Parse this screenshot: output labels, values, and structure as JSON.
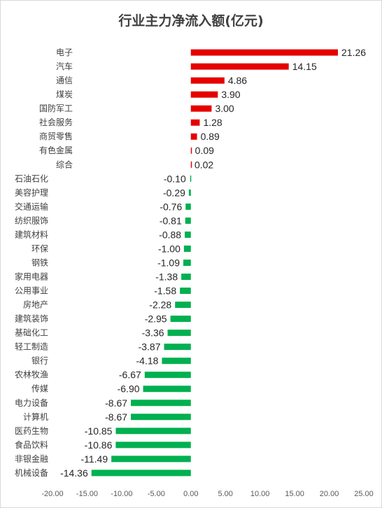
{
  "chart_data": {
    "type": "bar",
    "orientation": "horizontal",
    "title": "行业主力净流入额(亿元)",
    "categories": [
      "电子",
      "汽车",
      "通信",
      "煤炭",
      "国防军工",
      "社会服务",
      "商贸零售",
      "有色金属",
      "综合",
      "石油石化",
      "美容护理",
      "交通运输",
      "纺织服饰",
      "建筑材料",
      "环保",
      "钢铁",
      "家用电器",
      "公用事业",
      "房地产",
      "建筑装饰",
      "基础化工",
      "轻工制造",
      "银行",
      "农林牧渔",
      "传媒",
      "电力设备",
      "计算机",
      "医药生物",
      "食品饮料",
      "非银金融",
      "机械设备"
    ],
    "values": [
      21.26,
      14.15,
      4.86,
      3.9,
      3.0,
      1.28,
      0.89,
      0.09,
      0.02,
      -0.1,
      -0.29,
      -0.76,
      -0.81,
      -0.88,
      -1.0,
      -1.09,
      -1.38,
      -1.58,
      -2.28,
      -2.95,
      -3.36,
      -3.87,
      -4.18,
      -6.67,
      -6.9,
      -8.67,
      -8.67,
      -10.85,
      -10.86,
      -11.49,
      -14.36
    ],
    "value_labels": [
      "21.26",
      "14.15",
      "4.86",
      "3.90",
      "3.00",
      "1.28",
      "0.89",
      "0.09",
      "0.02",
      "-0.10",
      "-0.29",
      "-0.76",
      "-0.81",
      "-0.88",
      "-1.00",
      "-1.09",
      "-1.38",
      "-1.58",
      "-2.28",
      "-2.95",
      "-3.36",
      "-3.87",
      "-4.18",
      "-6.67",
      "-6.90",
      "-8.67",
      "-8.67",
      "-10.85",
      "-10.86",
      "-11.49",
      "-14.36"
    ],
    "xlim": [
      -20,
      25
    ],
    "x_ticks": [
      -20,
      -15,
      -10,
      -5,
      0,
      5,
      10,
      15,
      20,
      25
    ],
    "x_tick_labels": [
      "-20.00",
      "-15.00",
      "-10.00",
      "-5.00",
      "0.00",
      "5.00",
      "10.00",
      "15.00",
      "20.00",
      "25.00"
    ],
    "positive_color": "#e60000",
    "negative_color": "#00b050",
    "grid": false,
    "legend": "none"
  }
}
